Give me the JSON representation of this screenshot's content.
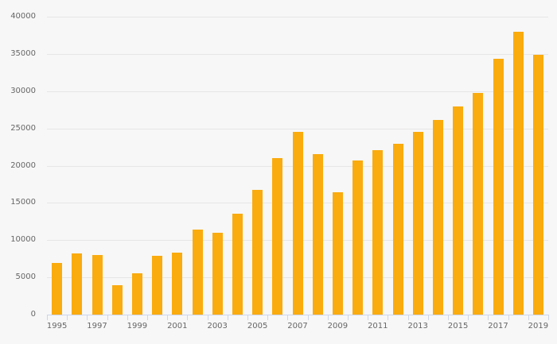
{
  "chart_data": {
    "type": "bar",
    "title": "",
    "xlabel": "",
    "ylabel": "",
    "x": [
      1995,
      1996,
      1997,
      1998,
      1999,
      2000,
      2001,
      2002,
      2003,
      2004,
      2005,
      2006,
      2007,
      2008,
      2009,
      2010,
      2011,
      2012,
      2013,
      2014,
      2015,
      2016,
      2017,
      2018,
      2019
    ],
    "values": [
      6900,
      8200,
      8000,
      4000,
      5500,
      7900,
      8300,
      11400,
      11000,
      13500,
      16800,
      21000,
      24500,
      21500,
      16400,
      20700,
      22100,
      22900,
      24500,
      26100,
      28000,
      29800,
      34400,
      38000,
      34900
    ],
    "ylim": [
      0,
      40000
    ],
    "yticks": [
      0,
      5000,
      10000,
      15000,
      20000,
      25000,
      30000,
      35000,
      40000
    ],
    "ytick_labels": [
      "0",
      "5000",
      "10000",
      "15000",
      "20000",
      "25000",
      "30000",
      "35000",
      "40000"
    ],
    "xtick_labels": [
      "1995",
      "1997",
      "1999",
      "2001",
      "2003",
      "2005",
      "2007",
      "2009",
      "2011",
      "2013",
      "2015",
      "2017",
      "2019"
    ],
    "grid": true,
    "legend": false,
    "colors": {
      "bar": "#faab0e",
      "background": "#f7f7f7",
      "gridline": "#e6e6e6",
      "axis_line": "#ccd6eb",
      "tick": "#ccd6eb",
      "label_text": "#666666"
    }
  }
}
